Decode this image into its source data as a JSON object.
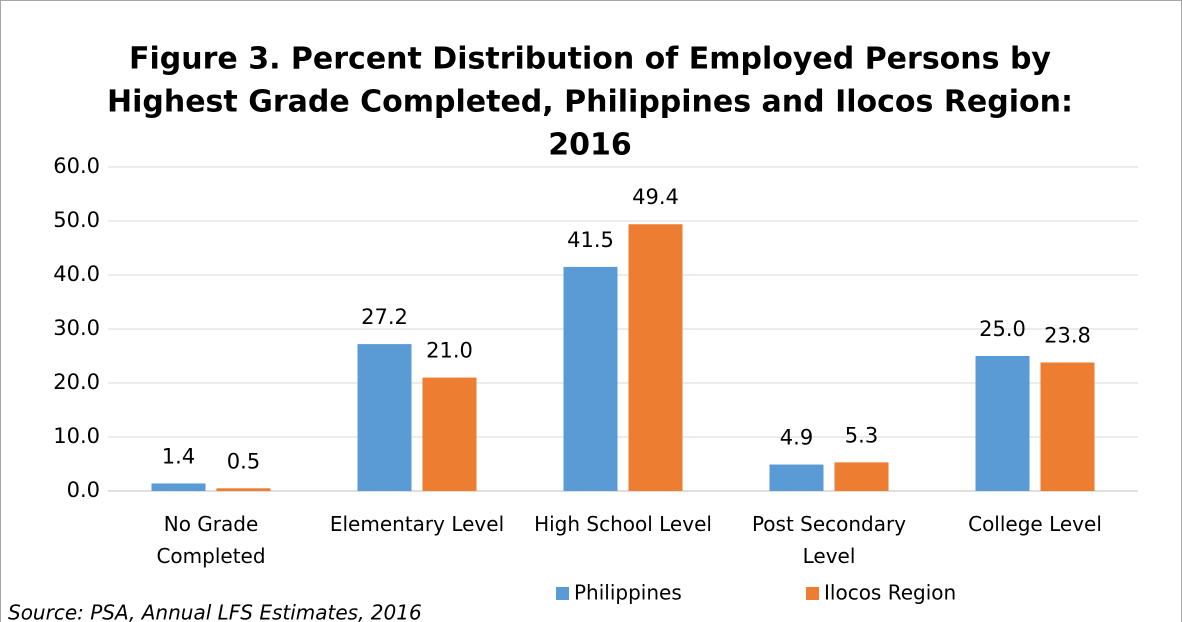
{
  "chart_data": {
    "type": "bar",
    "title": [
      "Figure 3. Percent Distribution of Employed Persons by",
      "Highest Grade Completed, Philippines and Ilocos Region:",
      "2016"
    ],
    "categories": [
      "No Grade Completed",
      "Elementary Level",
      "High School Level",
      "Post Secondary Level",
      "College Level"
    ],
    "series": [
      {
        "name": "Philippines",
        "color": "#5b9bd5",
        "values": [
          1.4,
          27.2,
          41.5,
          4.9,
          25.0
        ],
        "value_labels": [
          "1.4",
          "27.2",
          "41.5",
          "4.9",
          "25.0"
        ]
      },
      {
        "name": "Ilocos Region",
        "color": "#ed7d31",
        "values": [
          0.5,
          21.0,
          49.4,
          5.3,
          23.8
        ],
        "value_labels": [
          "0.5",
          "21.0",
          "49.4",
          "5.3",
          "23.8"
        ]
      }
    ],
    "ylim": [
      0,
      60
    ],
    "yticks": [
      {
        "value": 0,
        "label": "0.0"
      },
      {
        "value": 10,
        "label": "10.0"
      },
      {
        "value": 20,
        "label": "20.0"
      },
      {
        "value": 30,
        "label": "30.0"
      },
      {
        "value": 40,
        "label": "40.0"
      },
      {
        "value": 50,
        "label": "50.0"
      },
      {
        "value": 60,
        "label": "60.0"
      }
    ],
    "grid": true,
    "legend": "bottom",
    "source": "Source: PSA, Annual LFS Estimates, 2016"
  }
}
